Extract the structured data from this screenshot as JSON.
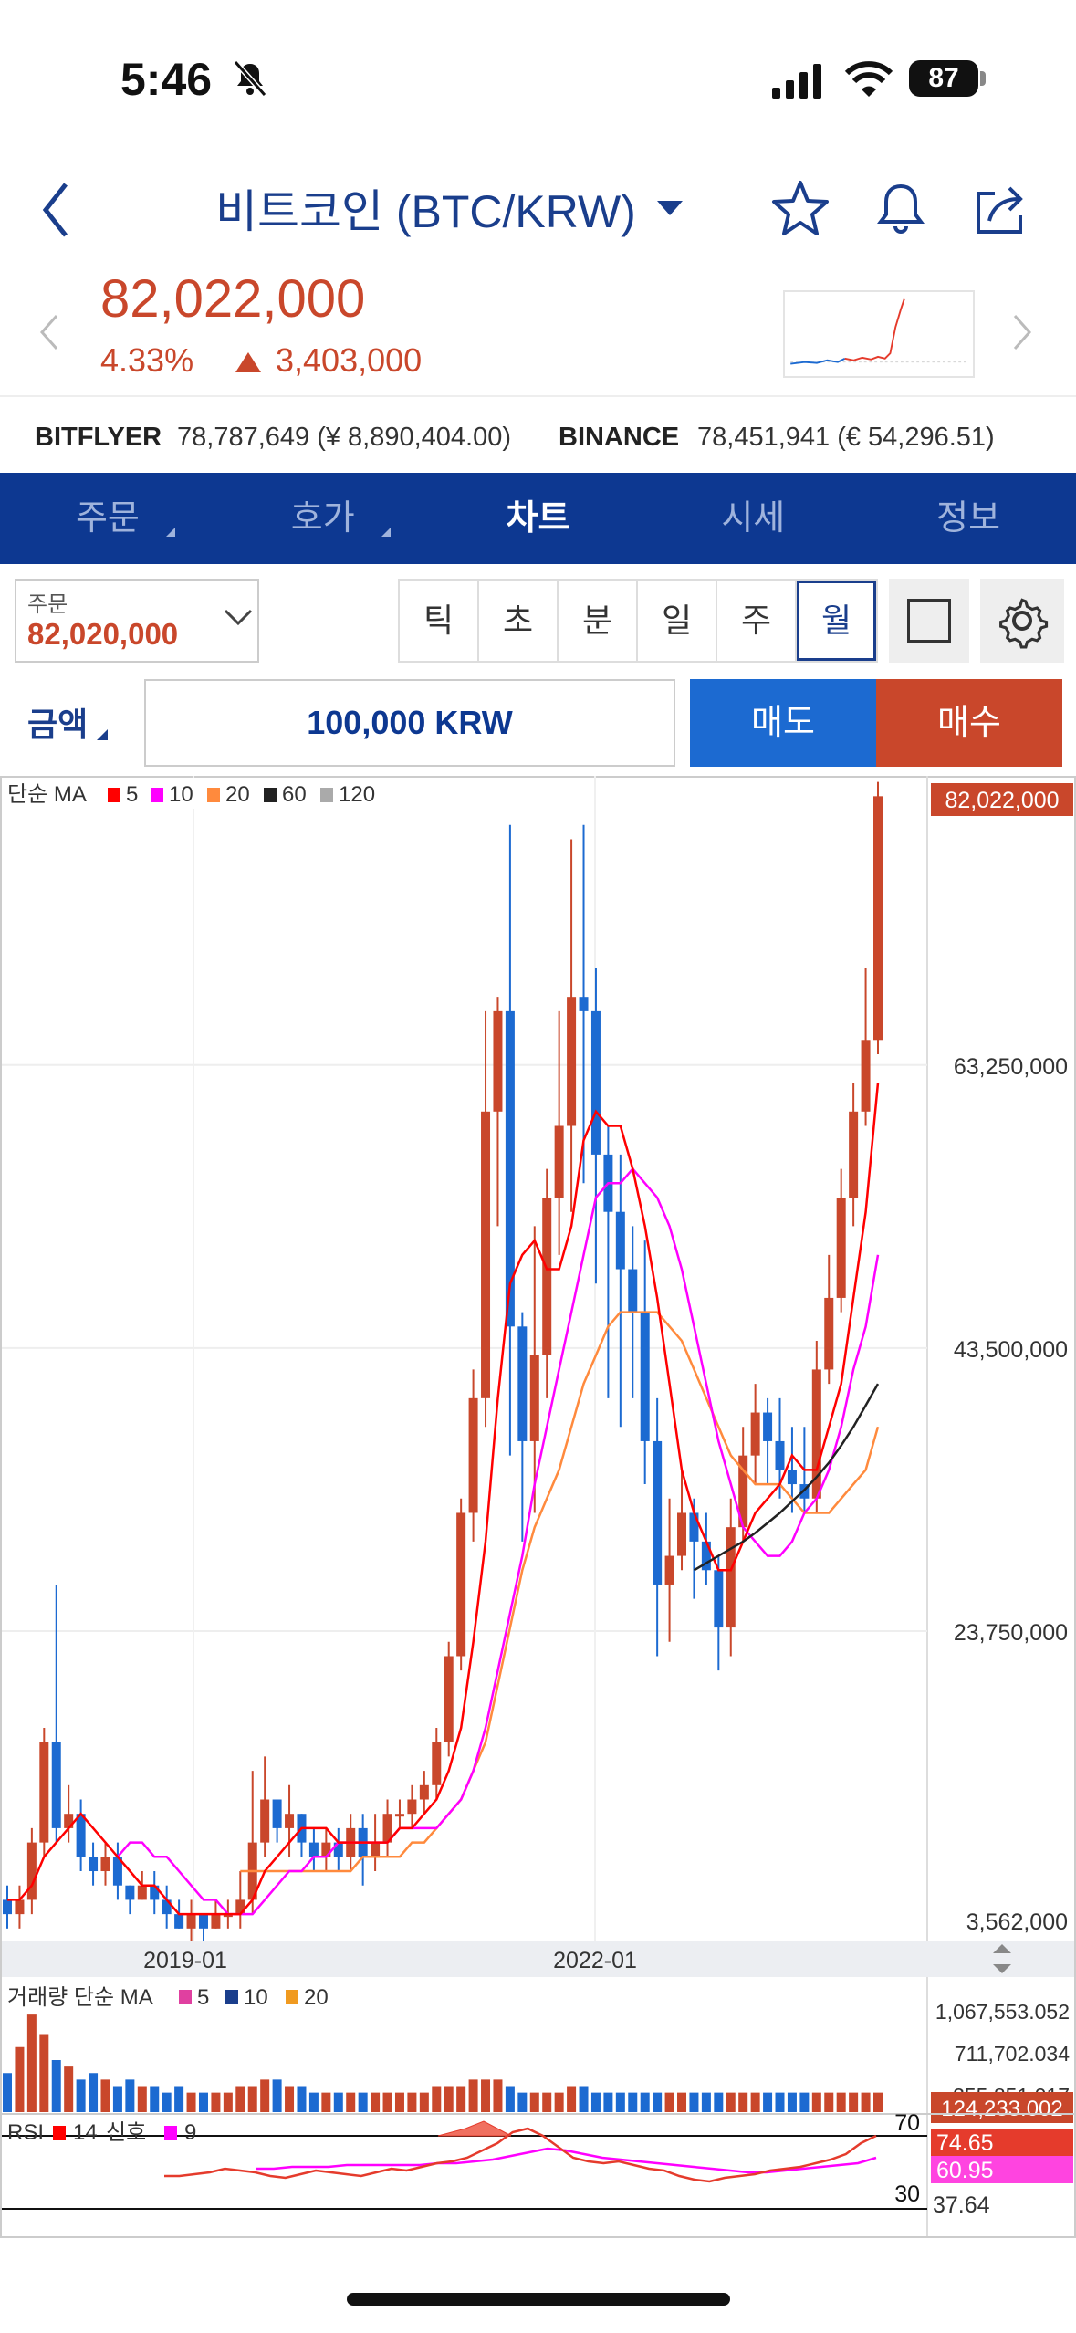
{
  "status": {
    "time": "5:46",
    "battery": "87"
  },
  "header": {
    "title": "비트코인 (BTC/KRW)",
    "back_icon": "chevron-left-icon",
    "icons": [
      "star-icon",
      "bell-icon",
      "share-icon"
    ]
  },
  "price": {
    "current": "82,022,000",
    "change_pct": "4.33%",
    "change_abs": "3,403,000",
    "up_color": "#c9472b"
  },
  "exchanges": [
    {
      "name": "BITFLYER",
      "value": "78,787,649 (¥ 8,890,404.00)"
    },
    {
      "name": "BINANCE",
      "value": "78,451,941 (€ 54,296.51)"
    }
  ],
  "tabs": [
    {
      "label": "주문",
      "sub": true
    },
    {
      "label": "호가",
      "sub": true
    },
    {
      "label": "차트",
      "active": true
    },
    {
      "label": "시세"
    },
    {
      "label": "정보"
    }
  ],
  "order": {
    "label": "주문",
    "value": "82,020,000"
  },
  "periods": [
    "틱",
    "초",
    "분",
    "일",
    "주",
    "월"
  ],
  "selected_period": "월",
  "amount": {
    "label": "금액",
    "value": "100,000 KRW",
    "sell": "매도",
    "buy": "매수"
  },
  "chart_data": {
    "type": "candlestick",
    "price_legend": {
      "label": "단순 MA",
      "periods": [
        {
          "n": "5",
          "color": "#ff0000"
        },
        {
          "n": "10",
          "color": "#ff00ff"
        },
        {
          "n": "20",
          "color": "#ff8a3d"
        },
        {
          "n": "60",
          "color": "#222222"
        },
        {
          "n": "120",
          "color": "#aaaaaa"
        }
      ]
    },
    "y_ticks": [
      "63,250,000",
      "43,500,000",
      "23,750,000",
      "3,562,000"
    ],
    "y_tick_values": [
      63250000,
      43500000,
      23750000,
      3562000
    ],
    "current_price_label": "82,022,000",
    "x_ticks": [
      "2019-01",
      "2022-01"
    ],
    "candles": [
      [
        5,
        4,
        6,
        3
      ],
      [
        4,
        5,
        6,
        3
      ],
      [
        5,
        9,
        10,
        4
      ],
      [
        9,
        16,
        17,
        8
      ],
      [
        16,
        10,
        27,
        9
      ],
      [
        10,
        11,
        13,
        9
      ],
      [
        11,
        8,
        12,
        7
      ],
      [
        8,
        7,
        9,
        6
      ],
      [
        7,
        8,
        9,
        6
      ],
      [
        8,
        6,
        9,
        5
      ],
      [
        6,
        5,
        6,
        4
      ],
      [
        5,
        6,
        7,
        5
      ],
      [
        6,
        5,
        7,
        4
      ],
      [
        5,
        4,
        6,
        3
      ],
      [
        4,
        3,
        5,
        3
      ],
      [
        3,
        4,
        5,
        2
      ],
      [
        4,
        3,
        4,
        2
      ],
      [
        3,
        4,
        5,
        3
      ],
      [
        4,
        4,
        5,
        3
      ],
      [
        4,
        5,
        7,
        3
      ],
      [
        5,
        9,
        14,
        4
      ],
      [
        9,
        12,
        15,
        8
      ],
      [
        12,
        10,
        12,
        9
      ],
      [
        10,
        11,
        13,
        8
      ],
      [
        11,
        9,
        11,
        8
      ],
      [
        9,
        8,
        10,
        7
      ],
      [
        8,
        9,
        10,
        7
      ],
      [
        9,
        8,
        10,
        7
      ],
      [
        8,
        10,
        11,
        7
      ],
      [
        10,
        8,
        11,
        6
      ],
      [
        8,
        9,
        11,
        7
      ],
      [
        9,
        11,
        12,
        8
      ],
      [
        11,
        11,
        12,
        10
      ],
      [
        11,
        12,
        13,
        10
      ],
      [
        12,
        13,
        14,
        11
      ],
      [
        13,
        16,
        17,
        12
      ],
      [
        16,
        22,
        23,
        15
      ],
      [
        22,
        32,
        33,
        21
      ],
      [
        32,
        40,
        42,
        30
      ],
      [
        40,
        60,
        67,
        38
      ],
      [
        60,
        67,
        68,
        52
      ],
      [
        67,
        45,
        80,
        36
      ],
      [
        45,
        37,
        46,
        30
      ],
      [
        37,
        43,
        52,
        32
      ],
      [
        43,
        54,
        56,
        40
      ],
      [
        54,
        59,
        67,
        50
      ],
      [
        59,
        68,
        79,
        53
      ],
      [
        68,
        67,
        80,
        55
      ],
      [
        67,
        57,
        70,
        48
      ],
      [
        57,
        53,
        59,
        40
      ],
      [
        53,
        49,
        57,
        38
      ],
      [
        49,
        46,
        52,
        40
      ],
      [
        46,
        37,
        51,
        34
      ],
      [
        37,
        27,
        40,
        22
      ],
      [
        27,
        29,
        33,
        23
      ],
      [
        29,
        32,
        35,
        28
      ],
      [
        32,
        30,
        33,
        26
      ],
      [
        30,
        28,
        32,
        27
      ],
      [
        28,
        24,
        29,
        21
      ],
      [
        24,
        31,
        33,
        22
      ],
      [
        31,
        36,
        38,
        30
      ],
      [
        36,
        39,
        41,
        34
      ],
      [
        39,
        37,
        40,
        34
      ],
      [
        37,
        35,
        40,
        33
      ],
      [
        35,
        34,
        38,
        32
      ],
      [
        34,
        33,
        38,
        32
      ],
      [
        33,
        42,
        44,
        32
      ],
      [
        42,
        47,
        50,
        41
      ],
      [
        47,
        54,
        56,
        46
      ],
      [
        54,
        60,
        62,
        52
      ],
      [
        60,
        65,
        70,
        59
      ],
      [
        65,
        82,
        83,
        64
      ]
    ],
    "ma5": [
      5,
      5,
      6,
      8,
      9,
      10,
      11,
      10,
      9,
      8,
      7,
      6,
      6,
      5,
      4,
      4,
      4,
      4,
      4,
      4,
      5,
      7,
      8,
      9,
      10,
      10,
      10,
      9,
      9,
      9,
      9,
      9,
      10,
      10,
      11,
      12,
      14,
      17,
      23,
      30,
      40,
      48,
      50,
      51,
      49,
      49,
      52,
      58,
      60,
      59,
      59,
      56,
      52,
      47,
      41,
      35,
      32,
      30,
      28,
      28,
      30,
      32,
      33,
      34,
      36,
      35,
      35,
      38,
      41,
      47,
      53,
      62
    ],
    "ma10": [
      null,
      null,
      null,
      null,
      null,
      null,
      null,
      null,
      null,
      8,
      9,
      9,
      8,
      8,
      7,
      6,
      5,
      5,
      4,
      4,
      4,
      5,
      6,
      7,
      7,
      8,
      8,
      9,
      9,
      9,
      9,
      9,
      10,
      10,
      10,
      10,
      11,
      12,
      14,
      17,
      21,
      25,
      29,
      34,
      38,
      42,
      46,
      50,
      54,
      55,
      55,
      56,
      55,
      54,
      52,
      49,
      45,
      41,
      37,
      34,
      31,
      30,
      29,
      29,
      30,
      32,
      33,
      35,
      38,
      42,
      45,
      50
    ],
    "ma20": [
      null,
      null,
      null,
      null,
      null,
      null,
      null,
      null,
      null,
      null,
      null,
      null,
      null,
      null,
      null,
      null,
      null,
      null,
      null,
      7,
      7,
      7,
      7,
      7,
      7,
      7,
      7,
      7,
      7,
      8,
      8,
      8,
      8,
      9,
      9,
      10,
      11,
      12,
      14,
      16,
      20,
      24,
      28,
      31,
      33,
      35,
      38,
      41,
      43,
      45,
      46,
      46,
      46,
      46,
      45,
      44,
      42,
      40,
      38,
      36,
      35,
      34,
      34,
      34,
      33,
      32,
      32,
      32,
      33,
      34,
      35,
      38
    ],
    "ma60": [
      28,
      28.5,
      29,
      29.5,
      30,
      30.6,
      31.3,
      32,
      32.8,
      33.6,
      34.5,
      35.5,
      36.7,
      38,
      39.5,
      41
    ]
  },
  "volume": {
    "label": "거래량 단순 MA",
    "periods": [
      {
        "n": "5",
        "color": "#e040a0"
      },
      {
        "n": "10",
        "color": "#1a3e8c"
      },
      {
        "n": "20",
        "color": "#f09a20"
      }
    ],
    "y_ticks": [
      "1,067,553.052",
      "711,702.034",
      "355,851.017"
    ],
    "current_label": "124,233.002",
    "bars": [
      6,
      10,
      15,
      12,
      8,
      7,
      5,
      6,
      5,
      4,
      5,
      4,
      4,
      3,
      4,
      3,
      3,
      3,
      3,
      4,
      4,
      5,
      5,
      4,
      4,
      3,
      3,
      3,
      3,
      3,
      3,
      3,
      3,
      3,
      3,
      4,
      4,
      4,
      5,
      5,
      5,
      4,
      3,
      3,
      3,
      3,
      4,
      4,
      3,
      3,
      3,
      3,
      3,
      3,
      3,
      3,
      3,
      3,
      3,
      3,
      3,
      3,
      3,
      3,
      3,
      3,
      3,
      3,
      3,
      3,
      3,
      3
    ]
  },
  "rsi": {
    "label": "RSI",
    "period": "14",
    "signal_label": "신호",
    "signal": "9",
    "levels": [
      "70",
      "30"
    ],
    "value_label": "74.65",
    "signal_value_label": "60.95",
    "bottom_label": "37.64"
  }
}
